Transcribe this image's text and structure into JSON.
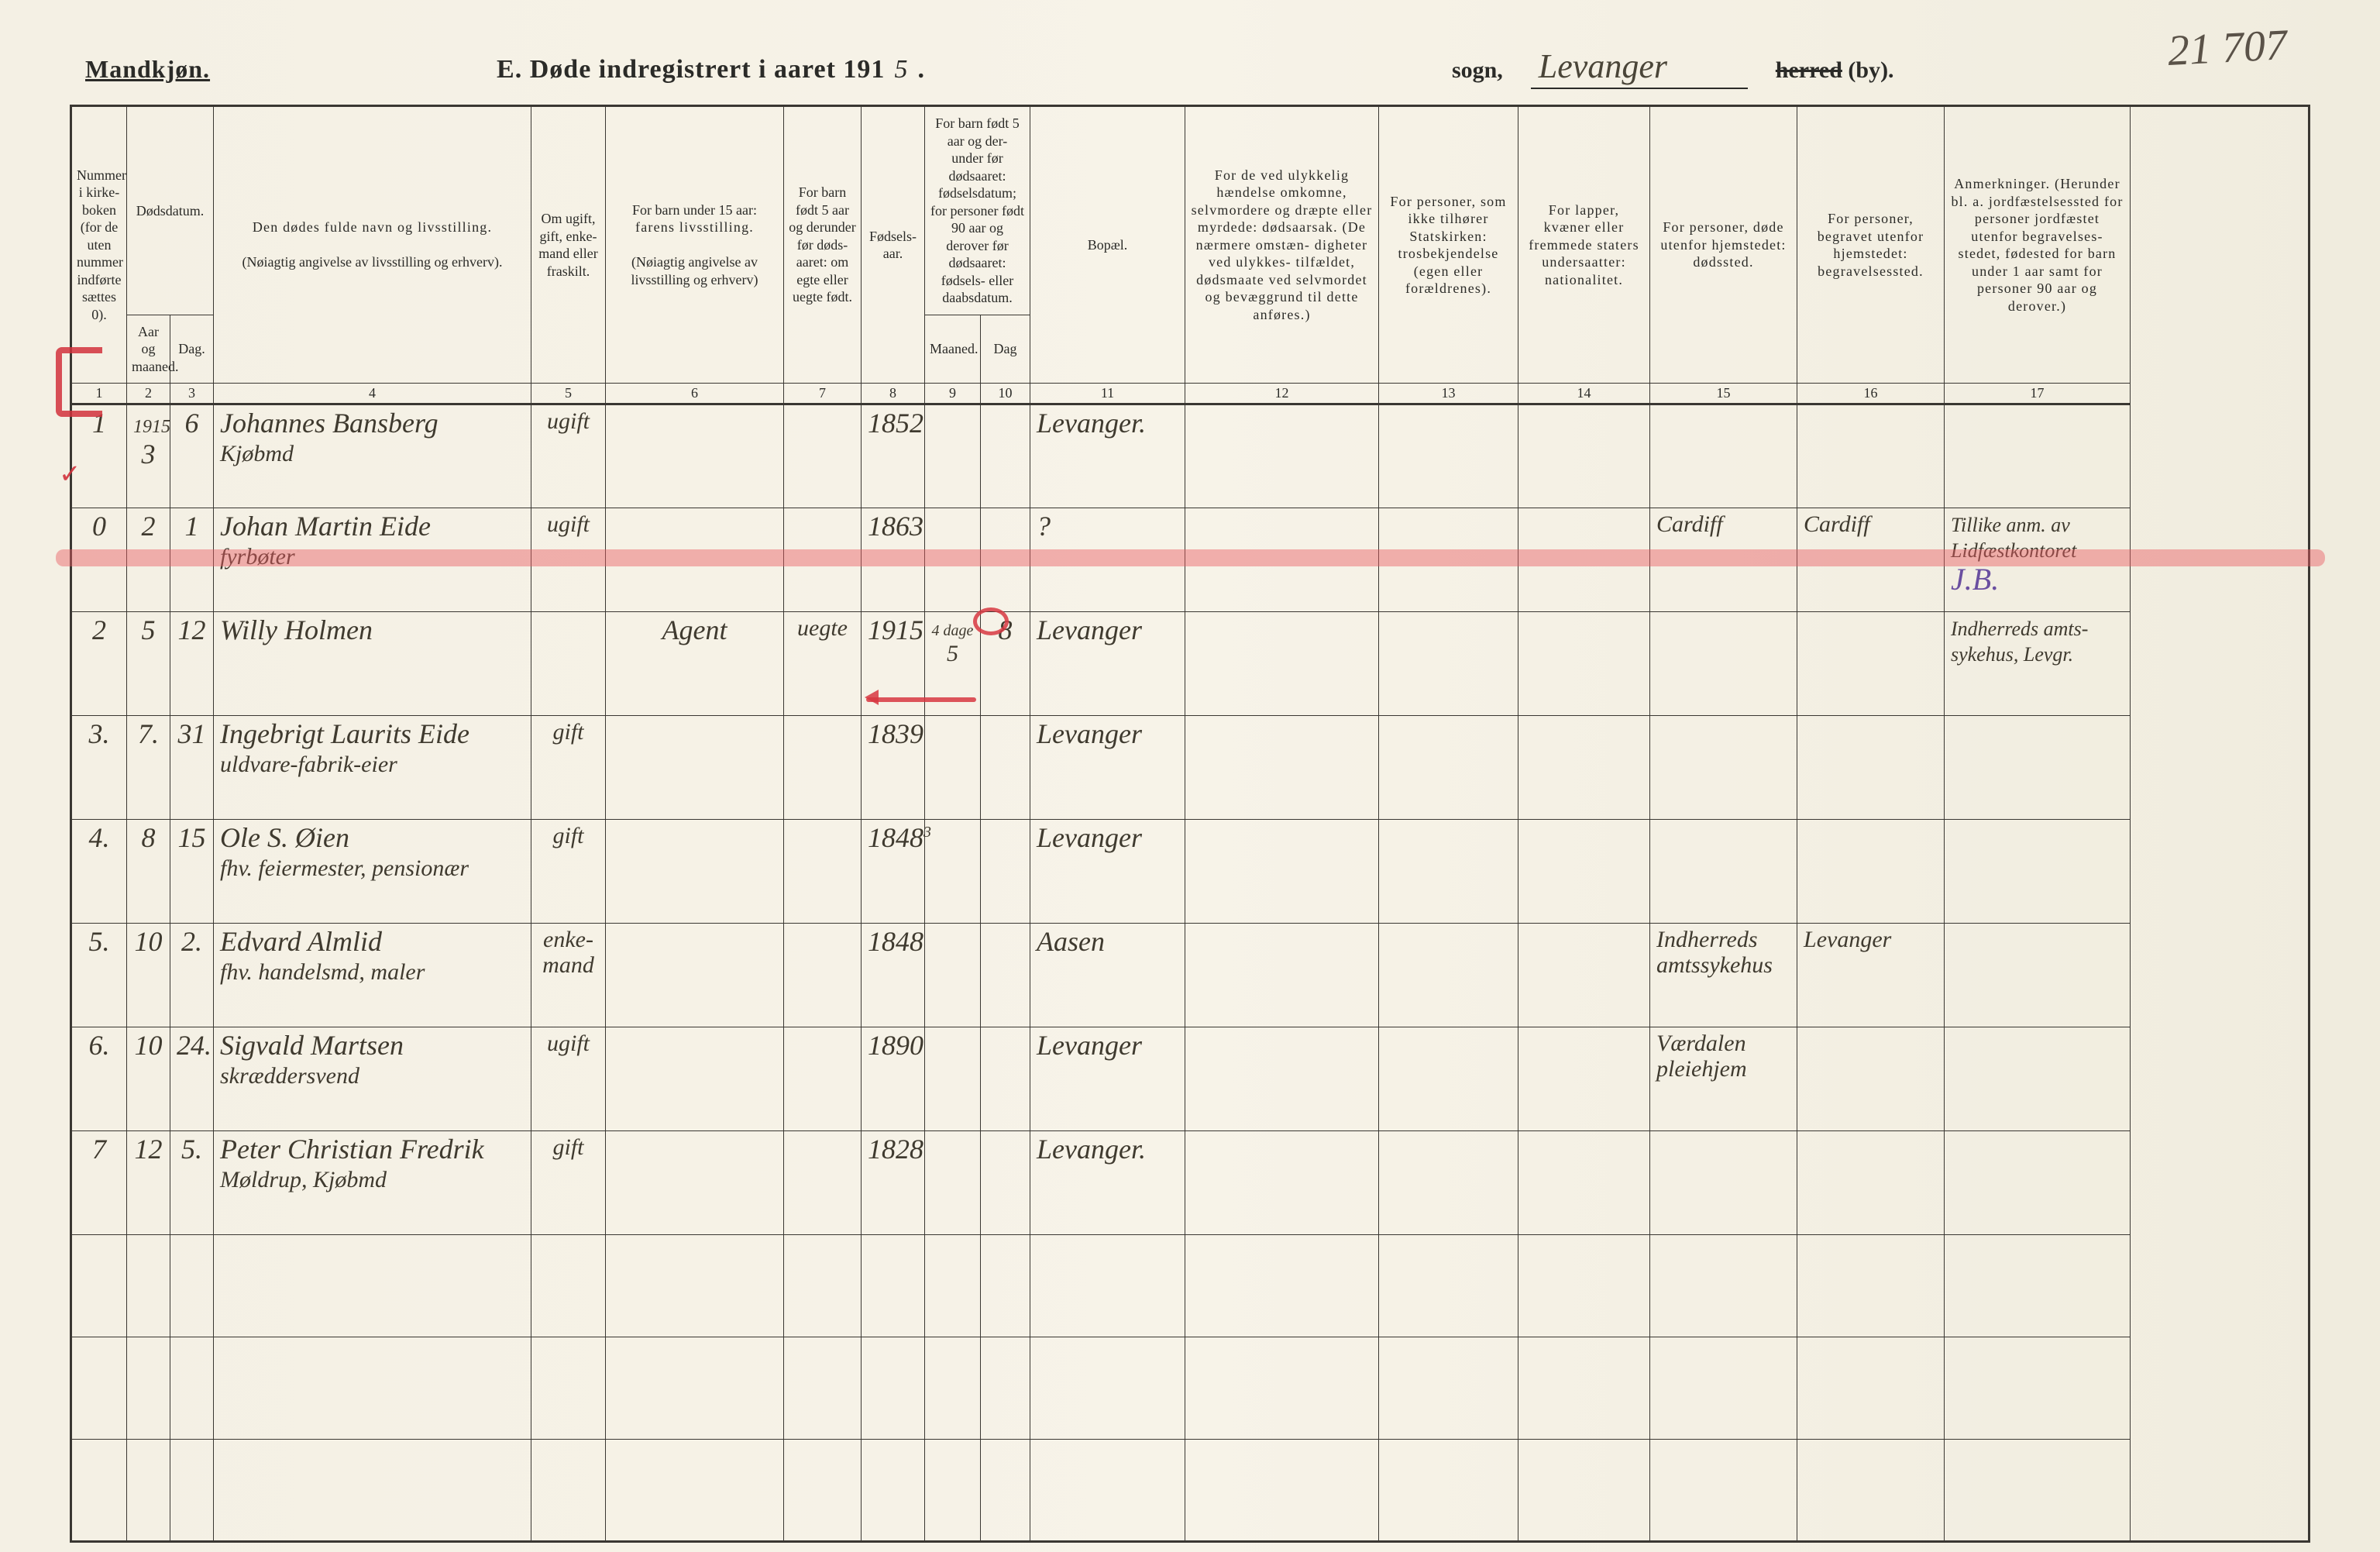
{
  "page_number_tr": "21 707",
  "gender_label": "Mandkjøn.",
  "title_prefix": "E.  Døde indregistrert i aaret 191",
  "title_year_suffix": "5",
  "title_period": " .",
  "sogn_label": "sogn,",
  "parish_name": "Levanger",
  "herred_strike": "herred",
  "by_label": " (by).",
  "colors": {
    "paper": "#f5f1e5",
    "ink": "#2b2b28",
    "script": "#3f3a2f",
    "red": "rgba(215,55,65,0.85)",
    "purple": "#6a4fa0"
  },
  "headers": {
    "c1": "Nummer i kirke- boken (for de uten nummer indførte sættes 0).",
    "c2_top": "Dødsdatum.",
    "c2_a": "Aar og maaned.",
    "c2_b": "Dag.",
    "c4_a": "Den dødes fulde navn og livsstilling.",
    "c4_b": "(Nøiagtig angivelse av livsstilling og erhverv).",
    "c5": "Om ugift, gift, enke- mand eller fraskilt.",
    "c6_a": "For barn under 15 aar:",
    "c6_b": "farens livsstilling.",
    "c6_c": "(Nøiagtig angivelse av livsstilling og erhverv)",
    "c7": "For barn født 5 aar og derunder før døds- aaret: om egte eller uegte født.",
    "c8": "Fødsels- aar.",
    "c9_top": "For barn født 5 aar og der- under før dødsaaret: fødselsdatum; for personer født 90 aar og derover før dødsaaret: fødsels- eller daabsdatum.",
    "c9_a": "Maaned.",
    "c9_b": "Dag",
    "c11": "Bopæl.",
    "c12": "For de ved ulykkelig hændelse omkomne, selvmordere og dræpte eller myrdede: dødsaarsak. (De nærmere omstæn- digheter ved ulykkes- tilfældet, dødsmaate ved selvmordet og bevæggrund til dette anføres.)",
    "c13": "For personer, som ikke tilhører Statskirken: trosbekjendelse (egen eller forældrenes).",
    "c14": "For lapper, kvæner eller fremmede staters undersaatter: nationalitet.",
    "c15": "For personer, døde utenfor hjemstedet: dødssted.",
    "c16": "For personer, begravet utenfor hjemstedet: begravelsessted.",
    "c17": "Anmerkninger. (Herunder bl. a. jordfæstelsessted for personer jordfæstet utenfor begravelses- stedet, fødested for barn under 1 aar samt for personer 90 aar og derover.)"
  },
  "colnums": [
    "1",
    "2",
    "3",
    "4",
    "5",
    "6",
    "7",
    "8",
    "9",
    "10",
    "11",
    "12",
    "13",
    "14",
    "15",
    "16",
    "17"
  ],
  "year_topcell": "1915",
  "rows": [
    {
      "n": "1",
      "mon": "3",
      "day": "6",
      "name": "Johannes Bansberg",
      "name2": "Kjøbmd",
      "c5": "ugift",
      "c6": "",
      "c7": "",
      "c8": "1852",
      "c9": "",
      "c10": "",
      "c11": "Levanger.",
      "c12": "",
      "c13": "",
      "c14": "",
      "c15": "",
      "c16": "",
      "c17": ""
    },
    {
      "n": "0",
      "mon": "2",
      "day": "1",
      "name": "Johan Martin Eide",
      "name2": "fyrbøter",
      "c5": "ugift",
      "c6": "",
      "c7": "",
      "c8": "1863",
      "c9": "",
      "c10": "",
      "c11": "?",
      "c12": "",
      "c13": "",
      "c14": "",
      "c15": "Cardiff",
      "c16": "Cardiff",
      "c17": "Tillike anm. av Lidfæstkontoret  J.B.",
      "hl": true
    },
    {
      "n": "2",
      "mon": "5",
      "day": "12",
      "name": "Willy Holmen",
      "name2": "",
      "c5": "",
      "c6": "Agent",
      "c7": "uegte",
      "c8": "1915",
      "c9": "5",
      "c9sup": "4 dage",
      "c10": "8",
      "c11": "Levanger",
      "c12": "",
      "c13": "",
      "c14": "",
      "c15": "",
      "c16": "",
      "c17": "Indherreds amts- sykehus, Levgr."
    },
    {
      "n": "3.",
      "mon": "7.",
      "day": "31",
      "name": "Ingebrigt Laurits Eide",
      "name2": "uldvare-fabrik-eier",
      "c5": "gift",
      "c6": "",
      "c7": "",
      "c8": "1839",
      "c9": "",
      "c10": "",
      "c11": "Levanger",
      "c12": "",
      "c13": "",
      "c14": "",
      "c15": "",
      "c16": "",
      "c17": ""
    },
    {
      "n": "4.",
      "mon": "8",
      "day": "15",
      "name": "Ole S. Øien",
      "name2": "fhv. feiermester, pensionær",
      "c5": "gift",
      "c6": "",
      "c7": "",
      "c8": "1848",
      "c8sup": "3",
      "c9": "",
      "c10": "",
      "c11": "Levanger",
      "c12": "",
      "c13": "",
      "c14": "",
      "c15": "",
      "c16": "",
      "c17": ""
    },
    {
      "n": "5.",
      "mon": "10",
      "day": "2.",
      "name": "Edvard Almlid",
      "name2": "fhv. handelsmd, maler",
      "c5": "enke- mand",
      "c6": "",
      "c7": "",
      "c8": "1848",
      "c9": "",
      "c10": "",
      "c11": "Aasen",
      "c12": "",
      "c13": "",
      "c14": "",
      "c15": "Indherreds amtssykehus",
      "c16": "Levanger",
      "c17": ""
    },
    {
      "n": "6.",
      "mon": "10",
      "day": "24.",
      "name": "Sigvald Martsen",
      "name2": "skræddersvend",
      "c5": "ugift",
      "c6": "",
      "c7": "",
      "c8": "1890",
      "c9": "",
      "c10": "",
      "c11": "Levanger",
      "c12": "",
      "c13": "",
      "c14": "",
      "c15": "Værdalen pleiehjem",
      "c16": "",
      "c17": ""
    },
    {
      "n": "7",
      "mon": "12",
      "day": "5.",
      "name": "Peter Christian Fredrik",
      "name2": "Møldrup, Kjøbmd",
      "c5": "gift",
      "c6": "",
      "c7": "",
      "c8": "1828",
      "c9": "",
      "c10": "",
      "c11": "Levanger.",
      "c12": "",
      "c13": "",
      "c14": "",
      "c15": "",
      "c16": "",
      "c17": ""
    }
  ],
  "empty_rows": 3
}
